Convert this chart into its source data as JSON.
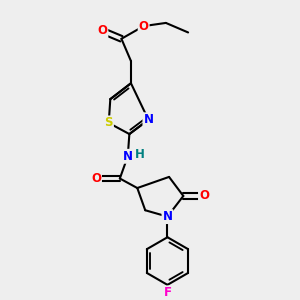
{
  "bg_color": "#eeeeee",
  "bond_color": "#000000",
  "bond_width": 1.5,
  "atom_colors": {
    "O": "#ff0000",
    "N": "#0000ff",
    "S": "#cccc00",
    "F": "#ff00cc",
    "H_teal": "#008080",
    "C": "#000000"
  },
  "font_size": 8.5
}
